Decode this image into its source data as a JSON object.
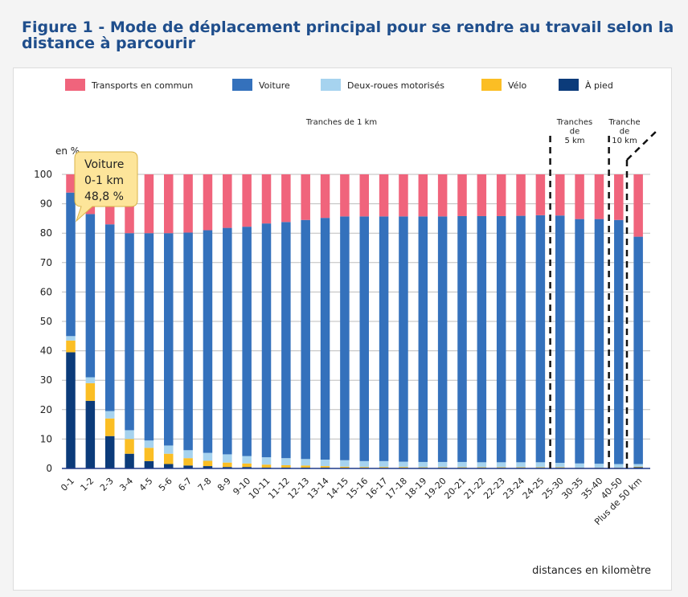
{
  "figure_title": "Figure 1 - Mode de déplacement principal pour se rendre au travail selon la distance à parcourir",
  "colors": {
    "transports": "#f0647c",
    "voiture": "#3471bc",
    "deuxroues": "#a6d3ef",
    "velo": "#fbbe24",
    "apied": "#0b3b7a"
  },
  "tooltip": {
    "line1": "Voiture",
    "line2": "0-1 km",
    "line3": "48,8 %"
  },
  "annotations": {
    "tranches_1km": "Tranches de 1 km",
    "tranches_5km": [
      "Tranches",
      "de",
      "5 km"
    ],
    "tranche_10km": [
      "Tranche",
      "de",
      "10 km"
    ]
  },
  "chart_data": {
    "type": "bar",
    "stacked": true,
    "ylabel": "en %",
    "xlabel": "distances en kilomètre",
    "ylim": [
      0,
      100
    ],
    "yticks": [
      0,
      10,
      20,
      30,
      40,
      50,
      60,
      70,
      80,
      90,
      100
    ],
    "grid": true,
    "legend_position": "top",
    "categories": [
      "0-1",
      "1-2",
      "2-3",
      "3-4",
      "4-5",
      "5-6",
      "6-7",
      "7-8",
      "8-9",
      "9-10",
      "10-11",
      "11-12",
      "12-13",
      "13-14",
      "14-15",
      "15-16",
      "16-17",
      "17-18",
      "18-19",
      "19-20",
      "20-21",
      "21-22",
      "22-23",
      "23-24",
      "24-25",
      "25-30",
      "30-35",
      "35-40",
      "40-50",
      "Plus de 50 km"
    ],
    "series": [
      {
        "name": "À pied",
        "key": "apied",
        "values": [
          39.5,
          23,
          11,
          5,
          2.5,
          1.5,
          1,
          0.8,
          0.5,
          0.5,
          0.3,
          0.3,
          0.3,
          0.3,
          0.2,
          0.2,
          0.2,
          0.2,
          0.2,
          0.2,
          0.2,
          0.2,
          0.2,
          0.2,
          0.2,
          0.2,
          0.2,
          0.2,
          0.2,
          0.4
        ]
      },
      {
        "name": "Vélo",
        "key": "velo",
        "values": [
          4,
          6,
          6,
          5,
          4.5,
          3.5,
          2.5,
          1.8,
          1.5,
          1.2,
          1,
          0.8,
          0.7,
          0.5,
          0.4,
          0.3,
          0.3,
          0.3,
          0.2,
          0.2,
          0.2,
          0.2,
          0.2,
          0.2,
          0.2,
          0.2,
          0.1,
          0.1,
          0.1,
          0.2
        ]
      },
      {
        "name": "Deux-roues motorisés",
        "key": "deuxroues",
        "values": [
          1.5,
          2,
          2.5,
          3,
          2.5,
          2.8,
          2.7,
          2.7,
          2.8,
          2.5,
          2.5,
          2.4,
          2.2,
          2.2,
          2.2,
          2,
          2,
          1.8,
          1.8,
          1.8,
          1.8,
          1.7,
          1.7,
          1.7,
          1.7,
          1.5,
          1.4,
          1.3,
          1.2,
          0.9
        ]
      },
      {
        "name": "Voiture",
        "key": "voiture",
        "values": [
          48.8,
          55.5,
          63.5,
          67,
          70.5,
          72.2,
          74,
          75.7,
          77,
          78,
          79.5,
          80.3,
          81.3,
          82.2,
          82.9,
          83.2,
          83.2,
          83.4,
          83.5,
          83.5,
          83.6,
          83.7,
          83.7,
          83.8,
          84,
          84.1,
          83.1,
          83.2,
          83,
          77.3
        ]
      },
      {
        "name": "Transports en commun",
        "key": "transports",
        "values": [
          6.2,
          13.5,
          17,
          20,
          20,
          20,
          19.8,
          19,
          18.2,
          17.8,
          16.7,
          16.2,
          15.5,
          14.8,
          14.3,
          14.3,
          14.3,
          14.3,
          14.3,
          14.3,
          14.2,
          14.2,
          14.2,
          14.1,
          13.9,
          14,
          15.2,
          15.2,
          15.5,
          21.2
        ]
      }
    ],
    "series_order_legend": [
      "transports",
      "voiture",
      "deuxroues",
      "velo",
      "apied"
    ]
  }
}
